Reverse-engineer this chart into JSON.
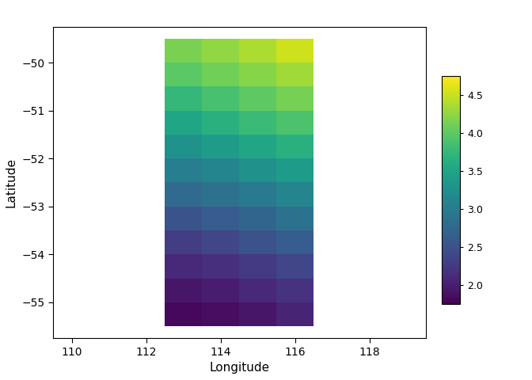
{
  "xlim": [
    109.5,
    119.5
  ],
  "ylim": [
    -55.75,
    -49.25
  ],
  "xticks": [
    110,
    112,
    114,
    116,
    118
  ],
  "yticks": [
    -55,
    -54,
    -53,
    -52,
    -51,
    -50
  ],
  "xlabel": "Longitude",
  "ylabel": "Latitude",
  "cmap": "viridis",
  "vmin": 1.75,
  "vmax": 4.75,
  "cbar_ticks": [
    2.0,
    2.5,
    3.0,
    3.5,
    4.0,
    4.5
  ],
  "lon_edges": [
    112.5,
    113.5,
    114.5,
    115.5,
    116.5
  ],
  "lat_edges": [
    -55.5,
    -55.0,
    -54.5,
    -54.0,
    -53.5,
    -53.0,
    -52.5,
    -52.0,
    -51.5,
    -51.0,
    -50.5,
    -50.0,
    -49.5
  ],
  "data": [
    [
      1.82,
      1.85,
      1.92,
      2.05
    ],
    [
      1.92,
      1.98,
      2.08,
      2.18
    ],
    [
      2.08,
      2.15,
      2.25,
      2.38
    ],
    [
      2.28,
      2.38,
      2.5,
      2.62
    ],
    [
      2.52,
      2.62,
      2.72,
      2.88
    ],
    [
      2.78,
      2.88,
      2.98,
      3.12
    ],
    [
      3.02,
      3.12,
      3.25,
      3.4
    ],
    [
      3.28,
      3.4,
      3.52,
      3.65
    ],
    [
      3.52,
      3.65,
      3.78,
      3.9
    ],
    [
      3.75,
      3.88,
      4.0,
      4.12
    ],
    [
      3.98,
      4.1,
      4.2,
      4.32
    ],
    [
      4.15,
      4.25,
      4.38,
      4.52
    ]
  ]
}
